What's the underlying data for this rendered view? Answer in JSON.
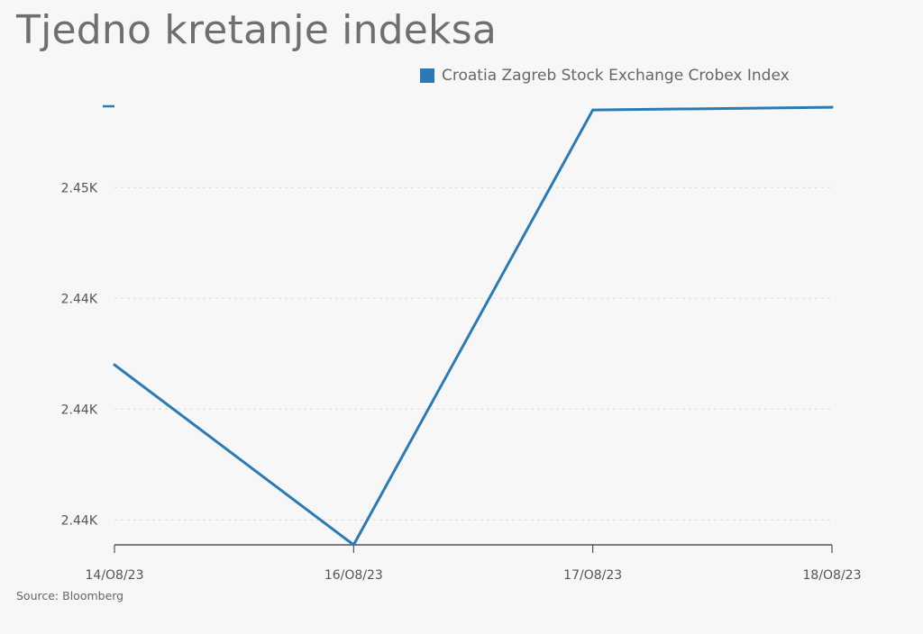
{
  "title": "Tjedno kretanje indeksa",
  "source": "Source: Bloomberg",
  "legend": {
    "label": "Croatia Zagreb Stock Exchange Crobex Index",
    "color": "#2a7bb4"
  },
  "chart_data": {
    "type": "line",
    "title": "Tjedno kretanje indeksa",
    "xlabel": "",
    "ylabel": "",
    "categories": [
      "14/O8/23",
      "16/O8/23",
      "17/O8/23",
      "18/O8/23"
    ],
    "series": [
      {
        "name": "Croatia Zagreb Stock Exchange Crobex Index",
        "color": "#2a7bb4",
        "values": [
          2442.1,
          2435.6,
          2451.3,
          2451.4
        ]
      }
    ],
    "y_ticks": [
      {
        "value": 2436.5,
        "label": "2.44K"
      },
      {
        "value": 2440.5,
        "label": "2.44K"
      },
      {
        "value": 2444.5,
        "label": "2.44K"
      },
      {
        "value": 2448.5,
        "label": "2.45K"
      }
    ],
    "ylim": [
      2435.6,
      2451.5
    ],
    "grid": "horizontal dotted",
    "legend_position": "top-right"
  }
}
